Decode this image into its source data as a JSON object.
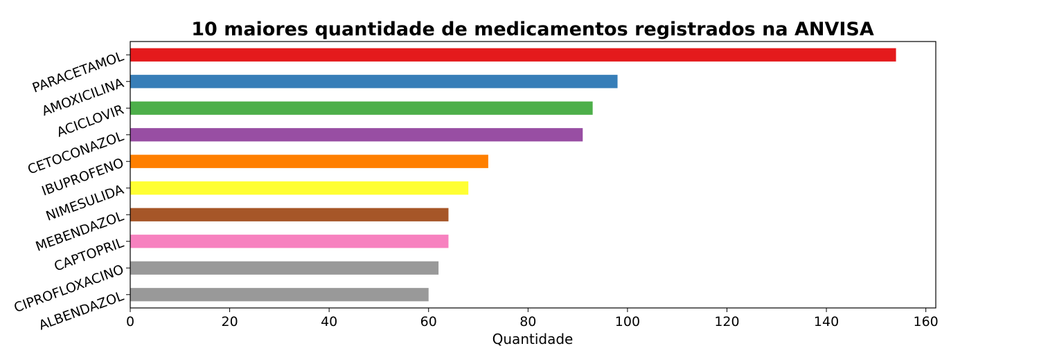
{
  "chart_data": {
    "type": "bar",
    "orientation": "horizontal",
    "title": "10 maiores quantidade de medicamentos registrados na ANVISA",
    "xlabel": "Quantidade",
    "ylabel": "",
    "xlim": [
      0,
      162
    ],
    "xticks": [
      0,
      20,
      40,
      60,
      80,
      100,
      120,
      140,
      160
    ],
    "grid": false,
    "categories": [
      "PARACETAMOL",
      "AMOXICILINA",
      "ACICLOVIR",
      "CETOCONAZOL",
      "IBUPROFENO",
      "NIMESULIDA",
      "MEBENDAZOL",
      "CAPTOPRIL",
      "CIPROFLOXACINO",
      "ALBENDAZOL"
    ],
    "values": [
      154,
      98,
      93,
      91,
      72,
      68,
      64,
      64,
      62,
      60
    ],
    "colors": [
      "#e41a1c",
      "#377eb8",
      "#4daf4a",
      "#984ea3",
      "#ff7f00",
      "#ffff33",
      "#a65628",
      "#f781bf",
      "#999999",
      "#999999"
    ]
  }
}
